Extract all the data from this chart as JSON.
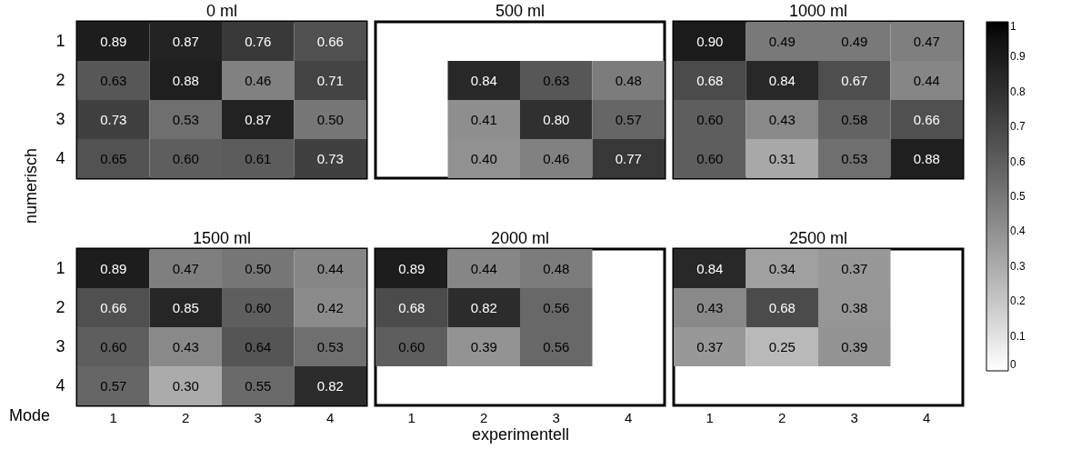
{
  "chart_data": [
    {
      "type": "heatmap",
      "title": "0 ml",
      "categories": [
        "1",
        "2",
        "3",
        "4"
      ],
      "y_categories": [
        "1",
        "2",
        "3",
        "4"
      ],
      "ylabel": "numerisch",
      "tick_labels": "y",
      "cells": [
        [
          0.89,
          0.87,
          0.76,
          0.66
        ],
        [
          0.63,
          0.88,
          0.46,
          0.71
        ],
        [
          0.73,
          0.53,
          0.87,
          0.5
        ],
        [
          0.65,
          0.6,
          0.61,
          0.73
        ]
      ],
      "cell_labels": [
        [
          "0.89",
          "0.87",
          "0.76",
          "0.66"
        ],
        [
          "0.63",
          "0.88",
          "0.46",
          "0.71"
        ],
        [
          "0.73",
          "0.53",
          "0.87",
          "0.50"
        ],
        [
          "0.65",
          "0.60",
          "0.61",
          "0.73"
        ]
      ]
    },
    {
      "type": "heatmap",
      "title": "500 ml",
      "categories": [
        "1",
        "2",
        "3",
        "4"
      ],
      "y_categories": [
        "1",
        "2",
        "3",
        "4"
      ],
      "tick_labels": false,
      "cells": [
        [
          null,
          null,
          null,
          null
        ],
        [
          null,
          0.84,
          0.63,
          0.48
        ],
        [
          null,
          0.41,
          0.8,
          0.57
        ],
        [
          null,
          0.4,
          0.46,
          0.77
        ]
      ],
      "cell_labels": [
        [
          null,
          null,
          null,
          null
        ],
        [
          null,
          "0.84",
          "0.63",
          "0.48"
        ],
        [
          null,
          "0.41",
          "0.80",
          "0.57"
        ],
        [
          null,
          "0.40",
          "0.46",
          "0.77"
        ]
      ]
    },
    {
      "type": "heatmap",
      "title": "1000 ml",
      "categories": [
        "1",
        "2",
        "3",
        "4"
      ],
      "y_categories": [
        "1",
        "2",
        "3",
        "4"
      ],
      "tick_labels": false,
      "clim": [
        0,
        1
      ],
      "cticks": [
        0,
        0.1,
        0.2,
        0.3,
        0.4,
        0.5,
        0.6,
        0.7,
        0.8,
        0.9,
        1
      ],
      "cells": [
        [
          0.9,
          0.49,
          0.49,
          0.47
        ],
        [
          0.68,
          0.84,
          0.67,
          0.44
        ],
        [
          0.6,
          0.43,
          0.58,
          0.66
        ],
        [
          0.6,
          0.31,
          0.53,
          0.88
        ]
      ],
      "cell_labels": [
        [
          "0.90",
          "0.49",
          "0.49",
          "0.47"
        ],
        [
          "0.68",
          "0.84",
          "0.67",
          "0.44"
        ],
        [
          "0.60",
          "0.43",
          "0.58",
          "0.66"
        ],
        [
          "0.60",
          "0.31",
          "0.53",
          "0.88"
        ]
      ]
    },
    {
      "type": "heatmap",
      "title": "1500 ml",
      "categories": [
        "1",
        "2",
        "3",
        "4"
      ],
      "y_categories": [
        "1",
        "2",
        "3",
        "4"
      ],
      "annotations": [
        "Mode"
      ],
      "cells": [
        [
          0.89,
          0.47,
          0.5,
          0.44
        ],
        [
          0.66,
          0.85,
          0.6,
          0.42
        ],
        [
          0.6,
          0.43,
          0.64,
          0.53
        ],
        [
          0.57,
          0.3,
          0.55,
          0.82
        ]
      ],
      "cell_labels": [
        [
          "0.89",
          "0.47",
          "0.50",
          "0.44"
        ],
        [
          "0.66",
          "0.85",
          "0.60",
          "0.42"
        ],
        [
          "0.60",
          "0.43",
          "0.64",
          "0.53"
        ],
        [
          "0.57",
          "0.30",
          "0.55",
          "0.82"
        ]
      ]
    },
    {
      "type": "heatmap",
      "title": "2000 ml",
      "categories": [
        "1",
        "2",
        "3",
        "4"
      ],
      "y_categories": [
        "1",
        "2",
        "3",
        "4"
      ],
      "xlabel": "experimentell",
      "tick_labels": "x",
      "cells": [
        [
          0.89,
          0.44,
          0.48,
          null
        ],
        [
          0.68,
          0.82,
          0.56,
          null
        ],
        [
          0.6,
          0.39,
          0.56,
          null
        ],
        [
          null,
          null,
          null,
          null
        ]
      ],
      "cell_labels": [
        [
          "0.89",
          "0.44",
          "0.48",
          null
        ],
        [
          "0.68",
          "0.82",
          "0.56",
          null
        ],
        [
          "0.60",
          "0.39",
          "0.56",
          null
        ],
        [
          null,
          null,
          null,
          null
        ]
      ]
    },
    {
      "type": "heatmap",
      "title": "2500 ml",
      "categories": [
        "1",
        "2",
        "3",
        "4"
      ],
      "y_categories": [
        "1",
        "2",
        "3",
        "4"
      ],
      "tick_labels": "x",
      "cells": [
        [
          0.84,
          0.34,
          0.37,
          null
        ],
        [
          0.43,
          0.68,
          0.38,
          null
        ],
        [
          0.37,
          0.25,
          0.39,
          null
        ],
        [
          null,
          null,
          null,
          null
        ]
      ],
      "cell_labels": [
        [
          "0.84",
          "0.34",
          "0.37",
          null
        ],
        [
          "0.43",
          "0.68",
          "0.38",
          null
        ],
        [
          "0.37",
          "0.25",
          "0.39",
          null
        ],
        [
          null,
          null,
          null,
          null
        ]
      ]
    }
  ]
}
